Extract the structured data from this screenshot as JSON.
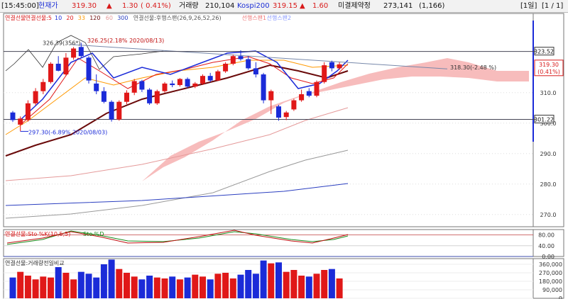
{
  "top_bar": {
    "time": "[15:45:00]",
    "price_label": "현재가",
    "price": "319.30",
    "up_symbol": "▲",
    "change": "1.30",
    "change_pct": "( 0.41%)",
    "volume_label": "거래량",
    "volume": "210,104",
    "index_name": "Kospi200",
    "index_value": "319.15",
    "index_up_symbol": "▲",
    "index_change": "1.60",
    "oi_label": "미결제약정",
    "open_interest": "273,141",
    "oi_change": "(1,166)",
    "period": "[1일]",
    "page": "[1 / 1]"
  },
  "colors": {
    "up": "#e01818",
    "down": "#1b2bd8",
    "cloud": "#f7bcbc",
    "ma5": "#1b2bd8",
    "ma10": "#e01818",
    "ma20": "#ff9900",
    "ma60": "#6a0a0a",
    "ma120": "#e59a9a",
    "ma300": "#2b3fc0"
  },
  "chart_data": [
    {
      "type": "candlestick",
      "title": "연결선물",
      "legend": [
        "연결선물",
        "연결선물:5",
        "10",
        "20",
        "33",
        "120",
        "60",
        "300",
        "연결선물:후행스팬(26,9,26,52,26)",
        "선행스팬1",
        "선행스팬2"
      ],
      "price_box": "319.30",
      "price_box_pct": "(0.41%)",
      "y_ticks": [
        270.0,
        280.0,
        290.0,
        300.0,
        310.0
      ],
      "ylim": [
        266,
        336
      ],
      "reference_levels": [
        {
          "label": "323.52",
          "value": 323.52
        },
        {
          "label": "301.22",
          "value": 301.22
        }
      ],
      "annotations": [
        {
          "text": "326.39(356*)",
          "value": 326.39
        },
        {
          "text": "326.25(2.18% 2020/08/13)",
          "value": 326.25
        },
        {
          "text": "297.30(-6.89% 2020/08/03)",
          "value": 297.3
        },
        {
          "text": "318.30(-2.48 %)",
          "value": 318.3
        }
      ],
      "candles": [
        [
          303.5,
          304.0,
          300.4,
          301.0
        ],
        [
          299.5,
          302.2,
          297.3,
          301.5
        ],
        [
          301.0,
          307.5,
          300.5,
          306.5
        ],
        [
          306.5,
          311.5,
          305.8,
          310.5
        ],
        [
          310.5,
          314.5,
          309.5,
          313.5
        ],
        [
          313.5,
          320.0,
          313.0,
          319.5
        ],
        [
          319.5,
          322.0,
          317.0,
          317.2
        ],
        [
          316.0,
          323.0,
          315.5,
          321.5
        ],
        [
          321.5,
          325.0,
          320.8,
          324.5
        ],
        [
          325.0,
          326.39,
          321.5,
          322.0
        ],
        [
          321.5,
          322.0,
          313.0,
          314.0
        ],
        [
          313.0,
          316.0,
          309.5,
          310.5
        ],
        [
          310.5,
          311.8,
          306.5,
          307.0
        ],
        [
          307.0,
          307.5,
          300.5,
          301.2
        ],
        [
          301.2,
          307.5,
          300.8,
          307.0
        ],
        [
          307.0,
          310.8,
          306.2,
          310.0
        ],
        [
          310.0,
          314.5,
          309.2,
          313.8
        ],
        [
          313.8,
          314.2,
          310.2,
          311.0
        ],
        [
          311.0,
          311.5,
          306.0,
          306.5
        ],
        [
          306.5,
          311.0,
          306.0,
          310.5
        ],
        [
          310.5,
          313.5,
          310.0,
          313.0
        ],
        [
          313.0,
          314.0,
          311.8,
          312.5
        ],
        [
          312.5,
          314.8,
          312.0,
          314.5
        ],
        [
          314.5,
          315.0,
          311.5,
          312.0
        ],
        [
          312.0,
          313.5,
          311.5,
          313.0
        ],
        [
          313.0,
          316.0,
          312.5,
          315.5
        ],
        [
          315.5,
          316.5,
          313.5,
          314.0
        ],
        [
          314.0,
          317.5,
          313.8,
          317.0
        ],
        [
          317.0,
          320.0,
          316.5,
          319.5
        ],
        [
          319.5,
          322.5,
          319.0,
          322.0
        ],
        [
          322.0,
          323.9,
          320.5,
          321.0
        ],
        [
          321.0,
          322.0,
          317.5,
          318.0
        ],
        [
          318.0,
          320.0,
          315.0,
          316.0
        ],
        [
          316.0,
          316.5,
          306.5,
          307.5
        ],
        [
          307.5,
          311.0,
          303.0,
          310.5
        ],
        [
          305.5,
          306.0,
          300.8,
          301.8
        ],
        [
          302.0,
          304.0,
          301.0,
          303.5
        ],
        [
          304.5,
          308.0,
          304.0,
          307.5
        ],
        [
          307.5,
          311.0,
          307.0,
          309.5
        ],
        [
          310.5,
          311.5,
          308.5,
          309.0
        ],
        [
          309.0,
          314.0,
          308.5,
          313.5
        ],
        [
          313.5,
          320.0,
          313.0,
          319.0
        ],
        [
          320.0,
          320.5,
          317.0,
          318.0
        ],
        [
          318.0,
          320.0,
          317.5,
          319.3
        ]
      ]
    },
    {
      "type": "line",
      "title": "연결선물:Sto %K(10,5,5)",
      "series": [
        {
          "name": "Sto %D"
        }
      ],
      "y_ticks": [
        0.0,
        40.0,
        80.0
      ],
      "ylim": [
        0,
        100
      ]
    },
    {
      "type": "bar",
      "title": "연결선물:거래량전일비교",
      "y_ticks": [
        0,
        90000,
        180000,
        270000,
        360000
      ],
      "ylim": [
        0,
        420000
      ],
      "values": [
        220000,
        280000,
        240000,
        200000,
        230000,
        220000,
        330000,
        270000,
        200000,
        280000,
        260000,
        220000,
        360000,
        410000,
        310000,
        270000,
        230000,
        200000,
        240000,
        220000,
        210000,
        230000,
        200000,
        220000,
        250000,
        230000,
        200000,
        260000,
        270000,
        210000,
        250000,
        300000,
        260000,
        400000,
        370000,
        380000,
        280000,
        300000,
        240000,
        230000,
        260000,
        300000,
        310000,
        210000
      ]
    }
  ]
}
